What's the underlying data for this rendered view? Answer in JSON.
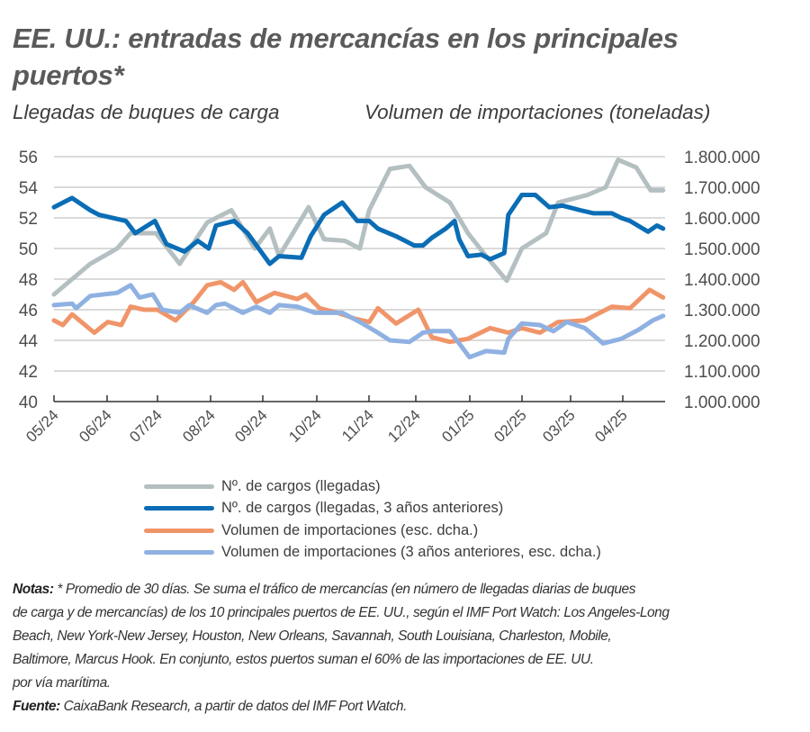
{
  "title": "EE. UU.: entradas de mercancías en los principales puertos*",
  "title_lines": [
    "EE. UU.: entradas de mercancías en los principales",
    "puertos*"
  ],
  "colors": {
    "gray": "#b4bfc1",
    "dark_blue": "#0a6db5",
    "orange": "#f0956a",
    "light_blue": "#8fb1e2",
    "grid": "#c4c4c4",
    "axis": "#333333"
  },
  "chart_data": {
    "type": "line",
    "title": "EE. UU.: entradas de mercancías en los principales puertos*",
    "ylabel_left": "Llegadas de buques de carga",
    "ylabel_right": "Volumen de importaciones (toneladas)",
    "x_unit": "months since 05/24",
    "xlim": [
      0,
      11.8
    ],
    "x_ticks": [
      0,
      1,
      2,
      3,
      4,
      5,
      6,
      7,
      8,
      9,
      10,
      11
    ],
    "x_tick_labels": [
      "05/24",
      "06/24",
      "07/24",
      "08/24",
      "09/24",
      "10/24",
      "11/24",
      "12/24",
      "01/25",
      "02/25",
      "03/25",
      "04/25"
    ],
    "ylim_left": [
      40,
      56
    ],
    "y_ticks_left": [
      "40",
      "42",
      "44",
      "46",
      "48",
      "50",
      "52",
      "54",
      "56"
    ],
    "ylim_right": [
      1000000,
      1800000
    ],
    "y_ticks_right": [
      "1.000.000",
      "1.100.000",
      "1.200.000",
      "1.300.000",
      "1.400.000",
      "1.500.000",
      "1.600.000",
      "1.700.000",
      "1.800.000"
    ],
    "grid": true,
    "legend_placement": "bottom",
    "series": [
      {
        "name": "Nº. de cargos (llegadas)",
        "axis": "left",
        "color": "#b4bfc1",
        "points": [
          [
            0,
            47
          ],
          [
            0.7,
            49
          ],
          [
            1.22,
            50
          ],
          [
            1.48,
            51
          ],
          [
            1.97,
            51
          ],
          [
            2.43,
            49
          ],
          [
            2.96,
            51.7
          ],
          [
            3.43,
            52.5
          ],
          [
            3.88,
            50
          ],
          [
            4.17,
            51.3
          ],
          [
            4.35,
            49.5
          ],
          [
            4.92,
            52.7
          ],
          [
            5.22,
            50.6
          ],
          [
            5.62,
            50.5
          ],
          [
            5.91,
            50
          ],
          [
            6.09,
            52.5
          ],
          [
            6.49,
            55.2
          ],
          [
            6.87,
            55.4
          ],
          [
            7.18,
            54
          ],
          [
            7.65,
            53
          ],
          [
            8,
            51
          ],
          [
            8.35,
            49.5
          ],
          [
            8.75,
            47.9
          ],
          [
            9.04,
            50
          ],
          [
            9.51,
            51
          ],
          [
            9.74,
            53
          ],
          [
            9.97,
            53.2
          ],
          [
            10.31,
            53.5
          ],
          [
            10.66,
            54
          ],
          [
            10.9,
            55.8
          ],
          [
            11.25,
            55.3
          ],
          [
            11.53,
            53.8
          ],
          [
            11.77,
            53.8
          ]
        ]
      },
      {
        "name": "Nº. de cargos (llegadas, 3 años anteriores)",
        "axis": "left",
        "color": "#0a6db5",
        "points": [
          [
            0,
            52.7
          ],
          [
            0.35,
            53.3
          ],
          [
            0.7,
            52.5
          ],
          [
            0.87,
            52.2
          ],
          [
            1.39,
            51.8
          ],
          [
            1.57,
            51
          ],
          [
            1.95,
            51.8
          ],
          [
            2.17,
            50.3
          ],
          [
            2.52,
            49.8
          ],
          [
            2.78,
            50.5
          ],
          [
            2.99,
            50
          ],
          [
            3.13,
            51.5
          ],
          [
            3.48,
            51.8
          ],
          [
            3.74,
            51
          ],
          [
            4.17,
            49
          ],
          [
            4.35,
            49.5
          ],
          [
            4.78,
            49.4
          ],
          [
            4.96,
            50.8
          ],
          [
            5.22,
            52.2
          ],
          [
            5.57,
            53
          ],
          [
            5.86,
            51.8
          ],
          [
            6.09,
            51.8
          ],
          [
            6.26,
            51.3
          ],
          [
            6.61,
            50.8
          ],
          [
            6.96,
            50.2
          ],
          [
            7.13,
            50.2
          ],
          [
            7.3,
            50.7
          ],
          [
            7.57,
            51.3
          ],
          [
            7.74,
            51.8
          ],
          [
            7.83,
            50.6
          ],
          [
            8,
            49.5
          ],
          [
            8.26,
            49.6
          ],
          [
            8.43,
            49.3
          ],
          [
            8.7,
            49.7
          ],
          [
            8.78,
            52.2
          ],
          [
            9.04,
            53.5
          ],
          [
            9.3,
            53.5
          ],
          [
            9.57,
            52.7
          ],
          [
            9.83,
            52.8
          ],
          [
            10.17,
            52.5
          ],
          [
            10.43,
            52.3
          ],
          [
            10.78,
            52.3
          ],
          [
            10.96,
            52
          ],
          [
            11.13,
            51.8
          ],
          [
            11.48,
            51.1
          ],
          [
            11.65,
            51.5
          ],
          [
            11.77,
            51.3
          ]
        ]
      },
      {
        "name": "Volumen de importaciones (esc. dcha.)",
        "axis": "right",
        "color": "#f0956a",
        "points": [
          [
            0,
            1265000
          ],
          [
            0.17,
            1250000
          ],
          [
            0.35,
            1285000
          ],
          [
            0.78,
            1225000
          ],
          [
            1.04,
            1260000
          ],
          [
            1.3,
            1250000
          ],
          [
            1.48,
            1310000
          ],
          [
            1.74,
            1300000
          ],
          [
            2,
            1300000
          ],
          [
            2.35,
            1265000
          ],
          [
            2.7,
            1325000
          ],
          [
            2.96,
            1380000
          ],
          [
            3.22,
            1390000
          ],
          [
            3.48,
            1365000
          ],
          [
            3.65,
            1390000
          ],
          [
            3.91,
            1325000
          ],
          [
            4.26,
            1355000
          ],
          [
            4.7,
            1335000
          ],
          [
            4.87,
            1350000
          ],
          [
            5.13,
            1305000
          ],
          [
            5.48,
            1290000
          ],
          [
            5.83,
            1270000
          ],
          [
            6.09,
            1260000
          ],
          [
            6.26,
            1305000
          ],
          [
            6.61,
            1255000
          ],
          [
            7.04,
            1300000
          ],
          [
            7.3,
            1210000
          ],
          [
            7.65,
            1195000
          ],
          [
            8,
            1205000
          ],
          [
            8.43,
            1240000
          ],
          [
            8.78,
            1225000
          ],
          [
            9.04,
            1240000
          ],
          [
            9.39,
            1225000
          ],
          [
            9.74,
            1260000
          ],
          [
            10.26,
            1265000
          ],
          [
            10.78,
            1310000
          ],
          [
            11.13,
            1305000
          ],
          [
            11.51,
            1365000
          ],
          [
            11.77,
            1340000
          ]
        ]
      },
      {
        "name": "Volumen de importaciones (3 años anteriores, esc. dcha.)",
        "axis": "right",
        "color": "#8fb1e2",
        "points": [
          [
            0,
            1315000
          ],
          [
            0.35,
            1320000
          ],
          [
            0.43,
            1305000
          ],
          [
            0.7,
            1345000
          ],
          [
            1.22,
            1355000
          ],
          [
            1.48,
            1380000
          ],
          [
            1.65,
            1340000
          ],
          [
            1.91,
            1350000
          ],
          [
            2.09,
            1300000
          ],
          [
            2.43,
            1290000
          ],
          [
            2.61,
            1315000
          ],
          [
            2.96,
            1290000
          ],
          [
            3.13,
            1315000
          ],
          [
            3.3,
            1320000
          ],
          [
            3.65,
            1290000
          ],
          [
            3.91,
            1310000
          ],
          [
            4.17,
            1290000
          ],
          [
            4.35,
            1315000
          ],
          [
            4.7,
            1310000
          ],
          [
            5.04,
            1290000
          ],
          [
            5.57,
            1290000
          ],
          [
            5.91,
            1260000
          ],
          [
            6.26,
            1225000
          ],
          [
            6.49,
            1200000
          ],
          [
            6.87,
            1195000
          ],
          [
            7.13,
            1225000
          ],
          [
            7.3,
            1230000
          ],
          [
            7.65,
            1230000
          ],
          [
            7.83,
            1190000
          ],
          [
            8.03,
            1145000
          ],
          [
            8.35,
            1165000
          ],
          [
            8.7,
            1160000
          ],
          [
            8.78,
            1205000
          ],
          [
            9.04,
            1255000
          ],
          [
            9.39,
            1250000
          ],
          [
            9.65,
            1230000
          ],
          [
            9.91,
            1260000
          ],
          [
            10.26,
            1240000
          ],
          [
            10.61,
            1190000
          ],
          [
            10.96,
            1205000
          ],
          [
            11.3,
            1235000
          ],
          [
            11.57,
            1265000
          ],
          [
            11.77,
            1280000
          ]
        ]
      }
    ]
  },
  "legend": [
    {
      "label": "Nº. de cargos (llegadas)",
      "color": "#b4bfc1"
    },
    {
      "label": "Nº. de cargos (llegadas, 3 años anteriores)",
      "color": "#0a6db5"
    },
    {
      "label": "Volumen de importaciones (esc. dcha.)",
      "color": "#f0956a"
    },
    {
      "label": "Volumen de importaciones (3 años anteriores, esc. dcha.)",
      "color": "#8fb1e2"
    }
  ],
  "notes": {
    "notes_label": "Notas:",
    "lines": [
      " * Promedio de 30 días. Se suma el tráfico de mercancías (en número de llegadas diarias de buques",
      "de carga y de mercancías) de los 10 principales puertos de EE. UU., según el IMF Port Watch: Los Angeles-Long",
      "Beach, New York-New Jersey, Houston, New Orleans, Savannah, South Louisiana, Charleston, Mobile,",
      "Baltimore, Marcus Hook. En conjunto, estos puertos suman el 60% de las importaciones de EE. UU.",
      "por vía marítima."
    ],
    "source_label": "Fuente:",
    "source_text": " CaixaBank Research, a partir de datos del IMF Port Watch."
  }
}
